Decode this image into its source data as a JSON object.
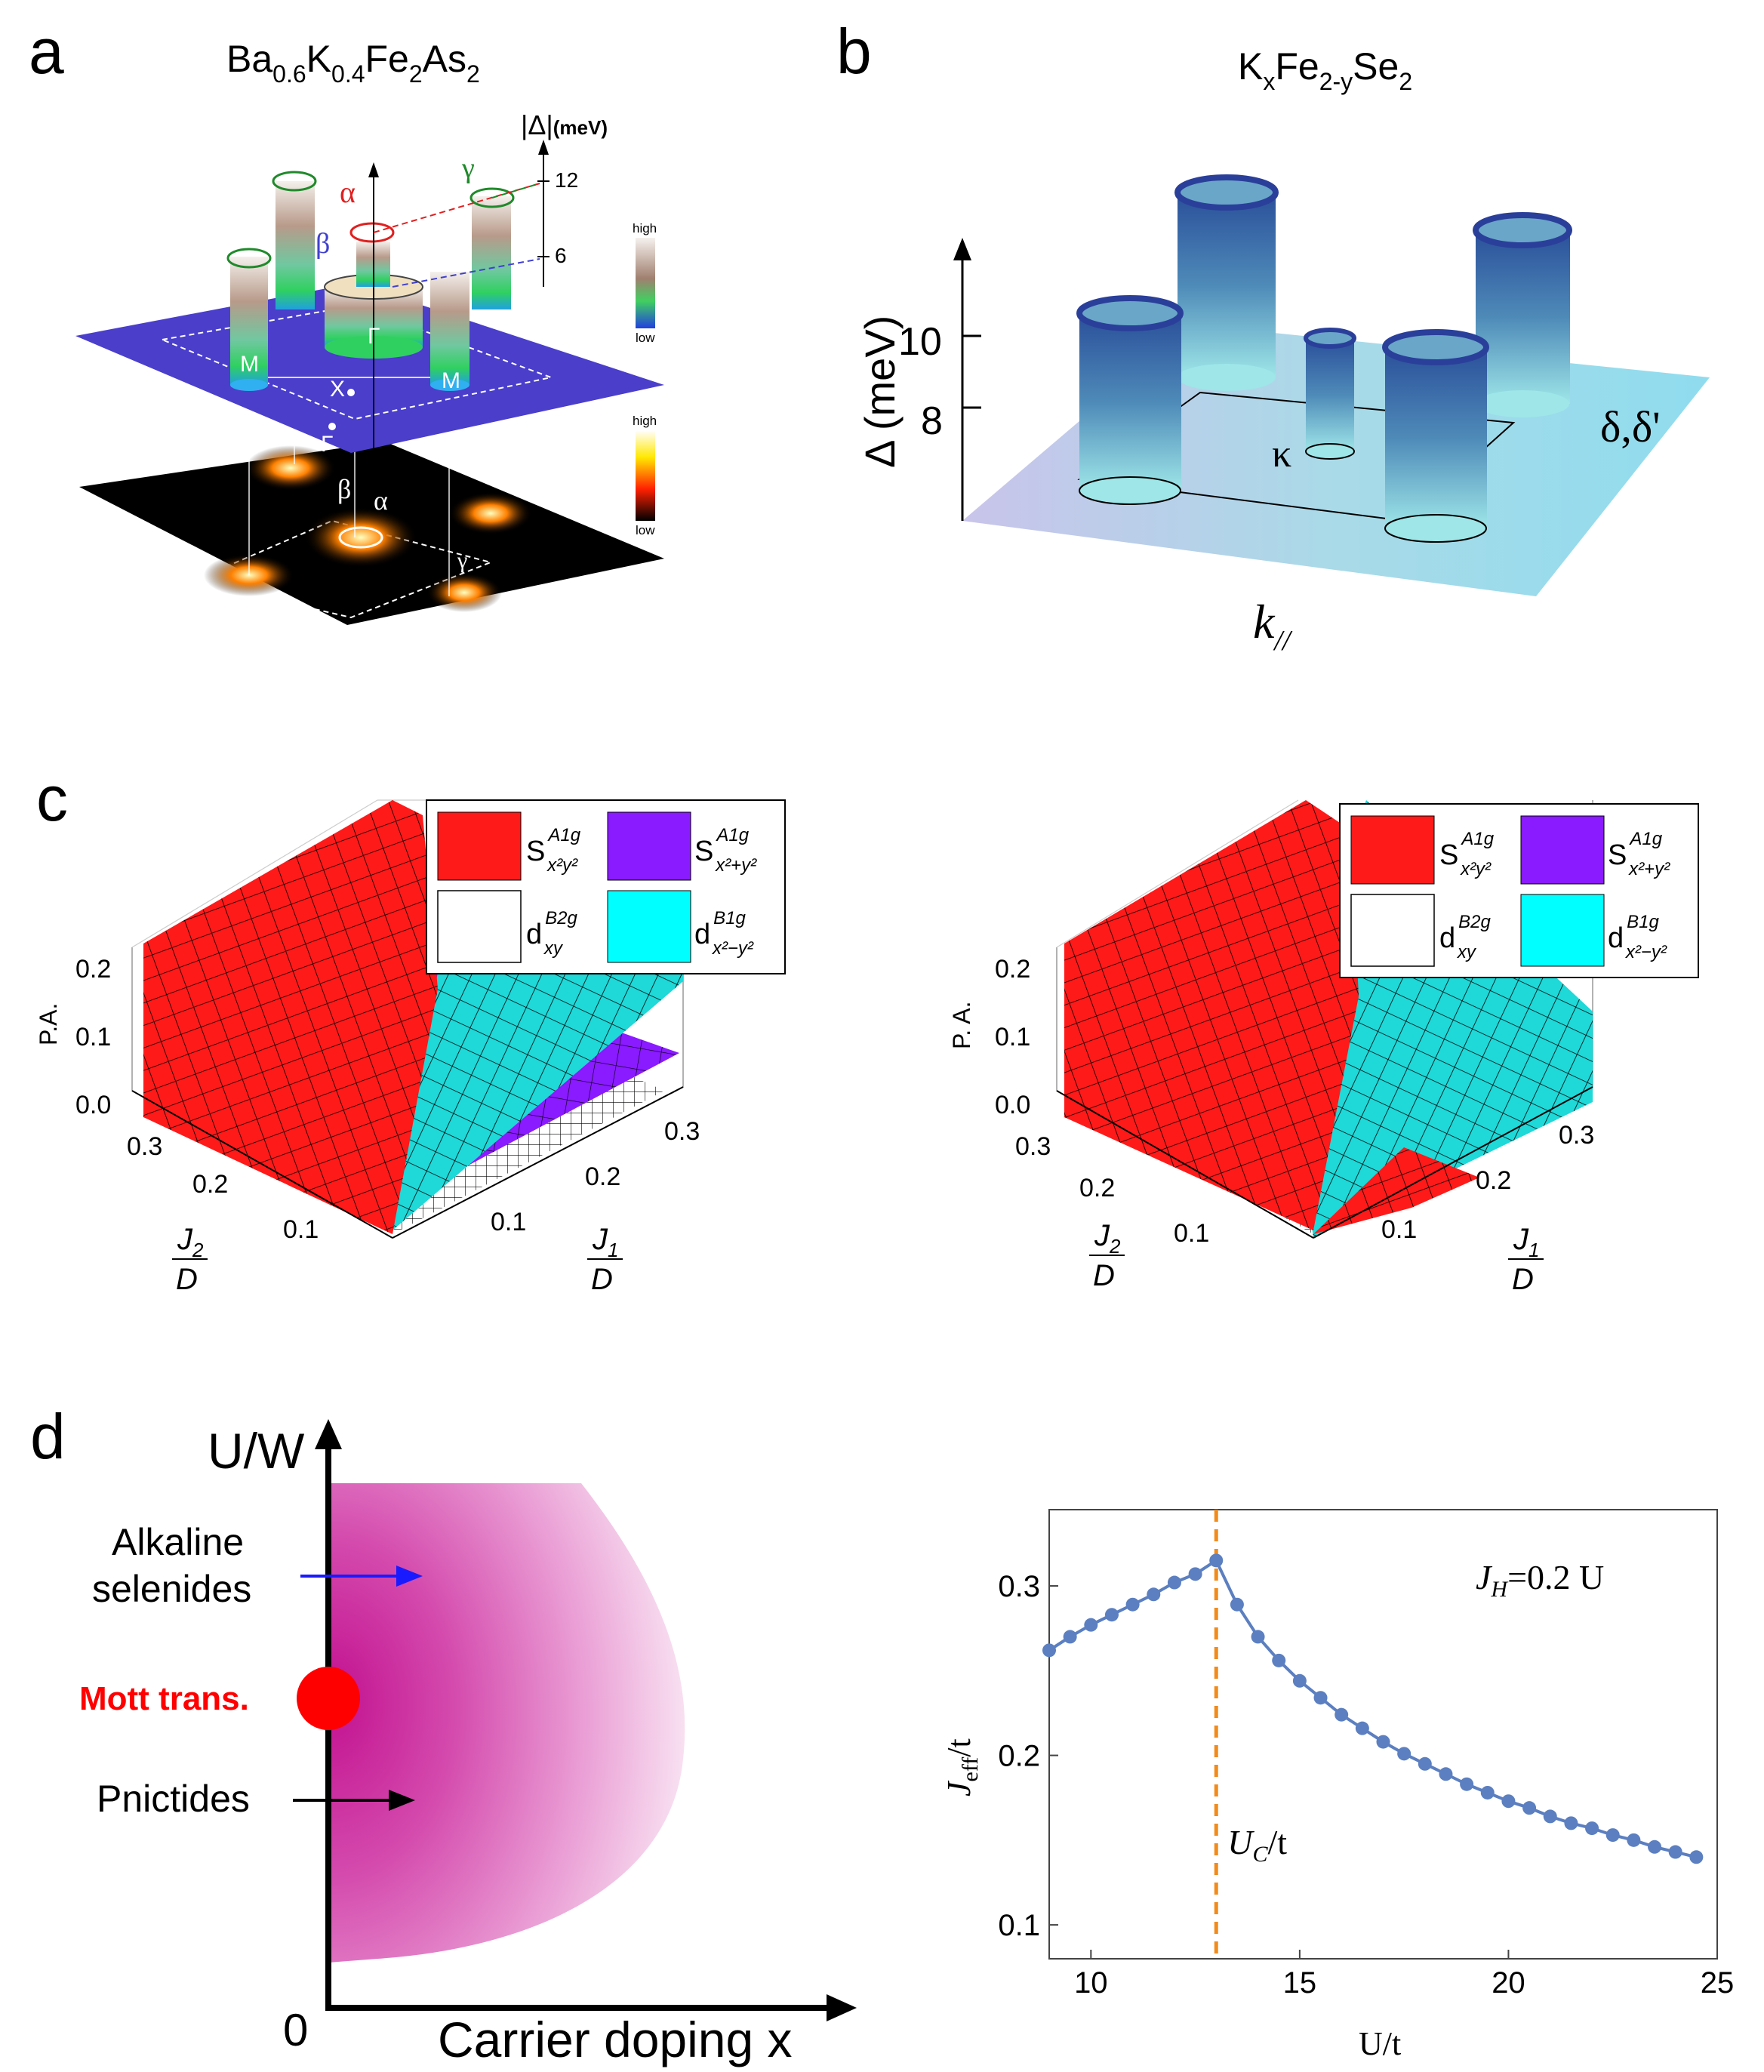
{
  "panel_labels": {
    "a": "a",
    "b": "b",
    "c": "c",
    "d": "d"
  },
  "panel_a": {
    "title_parts": [
      "Ba",
      "0.6",
      "K",
      "0.4",
      "Fe",
      "2",
      "As",
      "2"
    ],
    "axis_label": "|Δ|",
    "axis_unit": "(meV)",
    "ticks": [
      "12",
      "6"
    ],
    "labels": {
      "alpha": "α",
      "beta": "β",
      "gamma": "γ",
      "gamma_pt": "Γ",
      "m_left": "M",
      "m_right": "M",
      "x_pt": "X",
      "gamma_low": "Γ",
      "beta_low": "β",
      "alpha_low": "α",
      "gamma_low2": "γ"
    },
    "colorbar_top": {
      "high": "high",
      "low": "low"
    },
    "colorbar_bottom": {
      "high": "high",
      "low": "low"
    },
    "colors": {
      "plane": "#4b3fc6",
      "bottom": "#000000",
      "alpha_ring": "#e02020",
      "gamma_ring": "#1f8a2a",
      "beta_line": "#4040d0"
    }
  },
  "panel_b": {
    "title_parts": [
      "K",
      "x",
      "Fe",
      "2-y",
      "Se",
      "2"
    ],
    "axis_label": "Δ (meV)",
    "ticks": [
      "10",
      "8"
    ],
    "kappa": "κ",
    "delta": "δ,δ'",
    "k_label": "k",
    "k_sub": "//"
  },
  "panel_c": {
    "legend": [
      {
        "main": "S",
        "sup": "A1g",
        "sub": "x²y²",
        "color": "#ff1a1a"
      },
      {
        "main": "S",
        "sup": "A1g",
        "sub": "x²+y²",
        "color": "#8a1aff"
      },
      {
        "main": "d",
        "sup": "B2g",
        "sub": "xy",
        "color": "#ffffff"
      },
      {
        "main": "d",
        "sup": "B1g",
        "sub": "x²−y²",
        "color": "#00ffff"
      }
    ],
    "zlabel": "P.A.",
    "zlabel_right": "P. A.",
    "zticks": [
      "0.2",
      "0.1",
      "0.0"
    ],
    "j2_ticks": [
      "0.3",
      "0.2",
      "0.1"
    ],
    "j1_ticks": [
      "0.1",
      "0.2",
      "0.3"
    ],
    "j2_label": [
      "J",
      "2",
      "D"
    ],
    "j1_label": [
      "J",
      "1",
      "D"
    ]
  },
  "panel_d_left": {
    "ylabel": "U/W",
    "xlabel": "Carrier doping x",
    "origin": "0",
    "alkaline": [
      "Alkaline",
      "selenides"
    ],
    "mott": "Mott trans.",
    "pnictides": "Pnictides",
    "colors": {
      "magenta": "#c8129a",
      "mott": "#ff0000",
      "arrow_blue": "#1a1aff"
    }
  },
  "chart_data": {
    "type": "line",
    "title": "",
    "xlabel": "U/t",
    "ylabel": "J_eff/t",
    "xlim": [
      9,
      25
    ],
    "ylim": [
      0.08,
      0.345
    ],
    "xticks": [
      "10",
      "15",
      "20",
      "25"
    ],
    "yticks": [
      "0.3",
      "0.2",
      "0.1"
    ],
    "annotation": {
      "J": "J",
      "sub": "H",
      "rest": "=0.2 U"
    },
    "vline": {
      "x": 13.0,
      "label_main": "U",
      "label_sub": "C",
      "label_rest": "/t",
      "color": "#f28a1a"
    },
    "series": [
      {
        "color": "#5b7fc0",
        "x": [
          9.0,
          9.5,
          10.0,
          10.5,
          11.0,
          11.5,
          12.0,
          12.5,
          13.0,
          13.5,
          14.0,
          14.5,
          15.0,
          15.5,
          16.0,
          16.5,
          17.0,
          17.5,
          18.0,
          18.5,
          19.0,
          19.5,
          20.0,
          20.5,
          21.0,
          21.5,
          22.0,
          22.5,
          23.0,
          23.5,
          24.0,
          24.5
        ],
        "y": [
          0.262,
          0.27,
          0.277,
          0.283,
          0.289,
          0.295,
          0.302,
          0.307,
          0.315,
          0.289,
          0.27,
          0.256,
          0.244,
          0.234,
          0.224,
          0.216,
          0.208,
          0.201,
          0.195,
          0.189,
          0.183,
          0.178,
          0.173,
          0.169,
          0.164,
          0.16,
          0.157,
          0.153,
          0.15,
          0.146,
          0.143,
          0.14
        ]
      }
    ]
  }
}
